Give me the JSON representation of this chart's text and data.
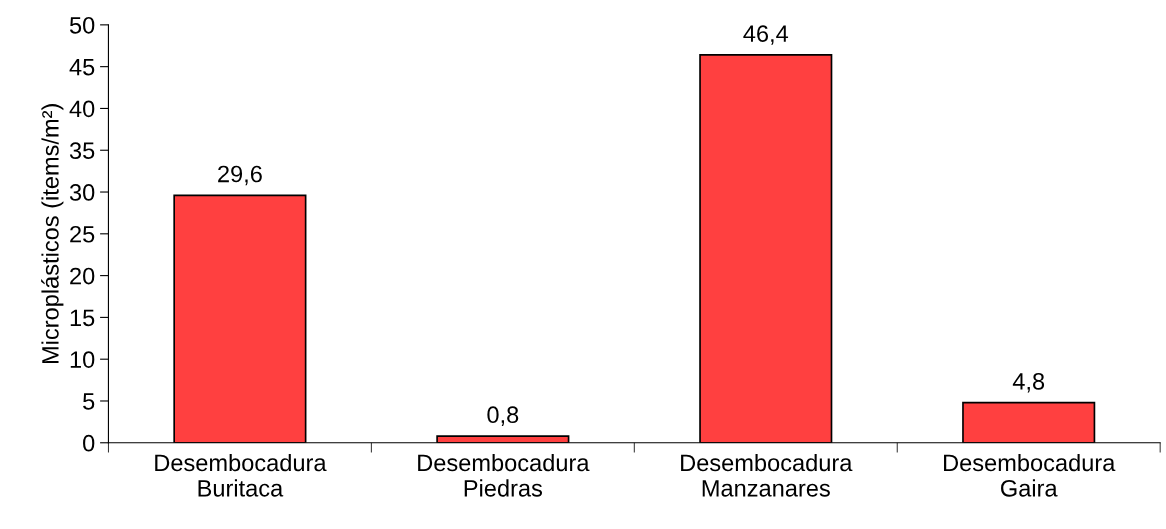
{
  "chart_data": {
    "type": "bar",
    "ylabel": "Microplásticos (items/m²)",
    "categories": [
      "Desembocadura\nBuritaca",
      "Desembocadura\nPiedras",
      "Desembocadura\nManzanares",
      "Desembocadura\nGaira"
    ],
    "values": [
      29.6,
      0.8,
      46.4,
      4.8
    ],
    "value_labels": [
      "29,6",
      "0,8",
      "46,4",
      "4,8"
    ],
    "color": "#ff4040",
    "ylim": [
      0,
      50
    ],
    "yticks": [
      0,
      5,
      10,
      15,
      20,
      25,
      30,
      35,
      40,
      45,
      50
    ],
    "grid": false
  }
}
